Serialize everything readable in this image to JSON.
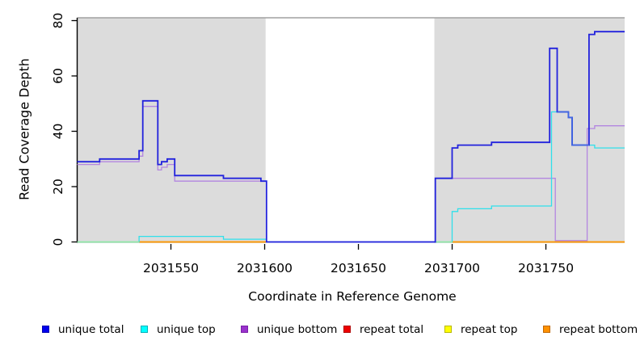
{
  "chart_data": {
    "type": "line",
    "subtype": "step",
    "title": "",
    "xlabel": "Coordinate in Reference Genome",
    "ylabel": "Read Coverage Depth",
    "xlim": [
      2031500,
      2031792
    ],
    "ylim": [
      0,
      80
    ],
    "x_ticks": [
      2031550,
      2031600,
      2031650,
      2031700,
      2031750
    ],
    "x_tick_labels": [
      "2031550",
      "2031600",
      "2031650",
      "2031700",
      "2031750"
    ],
    "y_ticks": [
      0,
      20,
      40,
      60,
      80
    ],
    "y_tick_labels": [
      "0",
      "20",
      "40",
      "60",
      "80"
    ],
    "grid": false,
    "legend_position": "bottom",
    "shaded_regions": [
      {
        "name": "left-gray-region",
        "x0": 2031500,
        "x1": 2031600.5,
        "fill": "#dcdcdc"
      },
      {
        "name": "right-gray-region",
        "x0": 2031690.5,
        "x1": 2031792,
        "fill": "#dcdcdc"
      }
    ],
    "top_border_color": "#a0a0a0",
    "series": [
      {
        "name": "repeat total",
        "color": "#ee0000",
        "width": 1.3,
        "segments": [
          [
            [
              2031533,
              0
            ],
            [
              2031601,
              0
            ]
          ],
          [
            [
              2031700,
              0
            ],
            [
              2031792,
              0
            ]
          ]
        ]
      },
      {
        "name": "repeat top",
        "color": "#ffff00",
        "width": 1.3,
        "segments": [
          [
            [
              2031533,
              0
            ],
            [
              2031601,
              0
            ]
          ],
          [
            [
              2031700,
              0
            ],
            [
              2031792,
              0
            ]
          ]
        ]
      },
      {
        "name": "repeat bottom",
        "color": "#ff9800",
        "width": 1.8,
        "segments": [
          [
            [
              2031533,
              0
            ],
            [
              2031601,
              0
            ]
          ],
          [
            [
              2031700,
              0
            ],
            [
              2031792,
              0
            ]
          ]
        ]
      },
      {
        "name": "unique bottom",
        "color": "#b386e0",
        "width": 1.3,
        "points": [
          [
            2031500,
            28
          ],
          [
            2031512,
            29
          ],
          [
            2031533,
            31
          ],
          [
            2031535,
            49
          ],
          [
            2031543,
            26
          ],
          [
            2031545,
            27
          ],
          [
            2031548,
            28
          ],
          [
            2031552,
            22
          ],
          [
            2031601,
            0
          ],
          [
            2031691,
            23
          ],
          [
            2031755,
            0.5
          ],
          [
            2031772,
            41
          ],
          [
            2031776,
            42
          ],
          [
            2031792,
            42
          ]
        ]
      },
      {
        "name": "unique top",
        "color": "#2fe0ea",
        "width": 1.3,
        "points": [
          [
            2031500,
            0
          ],
          [
            2031533,
            2
          ],
          [
            2031578,
            1
          ],
          [
            2031601,
            0
          ],
          [
            2031691,
            0
          ],
          [
            2031700,
            11
          ],
          [
            2031703,
            12
          ],
          [
            2031721,
            13
          ],
          [
            2031753,
            47
          ],
          [
            2031762,
            45
          ],
          [
            2031764,
            35
          ],
          [
            2031776,
            34
          ],
          [
            2031792,
            34
          ]
        ]
      },
      {
        "name": "unique total",
        "color": "#2222dd",
        "width": 1.8,
        "points": [
          [
            2031500,
            29
          ],
          [
            2031512,
            30
          ],
          [
            2031533,
            33
          ],
          [
            2031535,
            51
          ],
          [
            2031543,
            28
          ],
          [
            2031545,
            29
          ],
          [
            2031548,
            30
          ],
          [
            2031552,
            24
          ],
          [
            2031578,
            23
          ],
          [
            2031598,
            22
          ],
          [
            2031601,
            0
          ],
          [
            2031691,
            23
          ],
          [
            2031700,
            34
          ],
          [
            2031703,
            35
          ],
          [
            2031721,
            36
          ],
          [
            2031752,
            70
          ],
          [
            2031756,
            47
          ],
          [
            2031762,
            45
          ],
          [
            2031764,
            35
          ],
          [
            2031773,
            75
          ],
          [
            2031776,
            76
          ],
          [
            2031792,
            76
          ]
        ]
      }
    ],
    "render_overlaps": [
      {
        "name": "repeat-top-over-unique-top-blend",
        "color": "#90e8a0",
        "width": 1.5,
        "segments": [
          [
            [
              2031500,
              0
            ],
            [
              2031533,
              0
            ]
          ],
          [
            [
              2031691,
              0
            ],
            [
              2031700,
              0
            ]
          ]
        ]
      },
      {
        "name": "unique-top-over-unique-total-blend",
        "color": "#4169e1",
        "width": 1.6,
        "points": [
          [
            2031756,
            47
          ],
          [
            2031762,
            45
          ],
          [
            2031764,
            35
          ],
          [
            2031773,
            35
          ]
        ]
      }
    ],
    "draw_order": [
      "repeat total",
      "repeat top",
      "repeat bottom",
      "unique bottom",
      "unique top",
      "overlay:repeat-top-over-unique-top-blend",
      "unique total",
      "overlay:unique-top-over-unique-total-blend"
    ],
    "legend": [
      {
        "label": "unique total",
        "color": "#0000ee",
        "border": "#0000b0"
      },
      {
        "label": "unique top",
        "color": "#00ffff",
        "border": "#00b0b8"
      },
      {
        "label": "unique bottom",
        "color": "#9932cc",
        "border": "#7a1fa8"
      },
      {
        "label": "repeat total",
        "color": "#ee0000",
        "border": "#b00000"
      },
      {
        "label": "repeat top",
        "color": "#ffff00",
        "border": "#b8b800"
      },
      {
        "label": "repeat bottom",
        "color": "#ff9100",
        "border": "#c06800"
      }
    ]
  }
}
